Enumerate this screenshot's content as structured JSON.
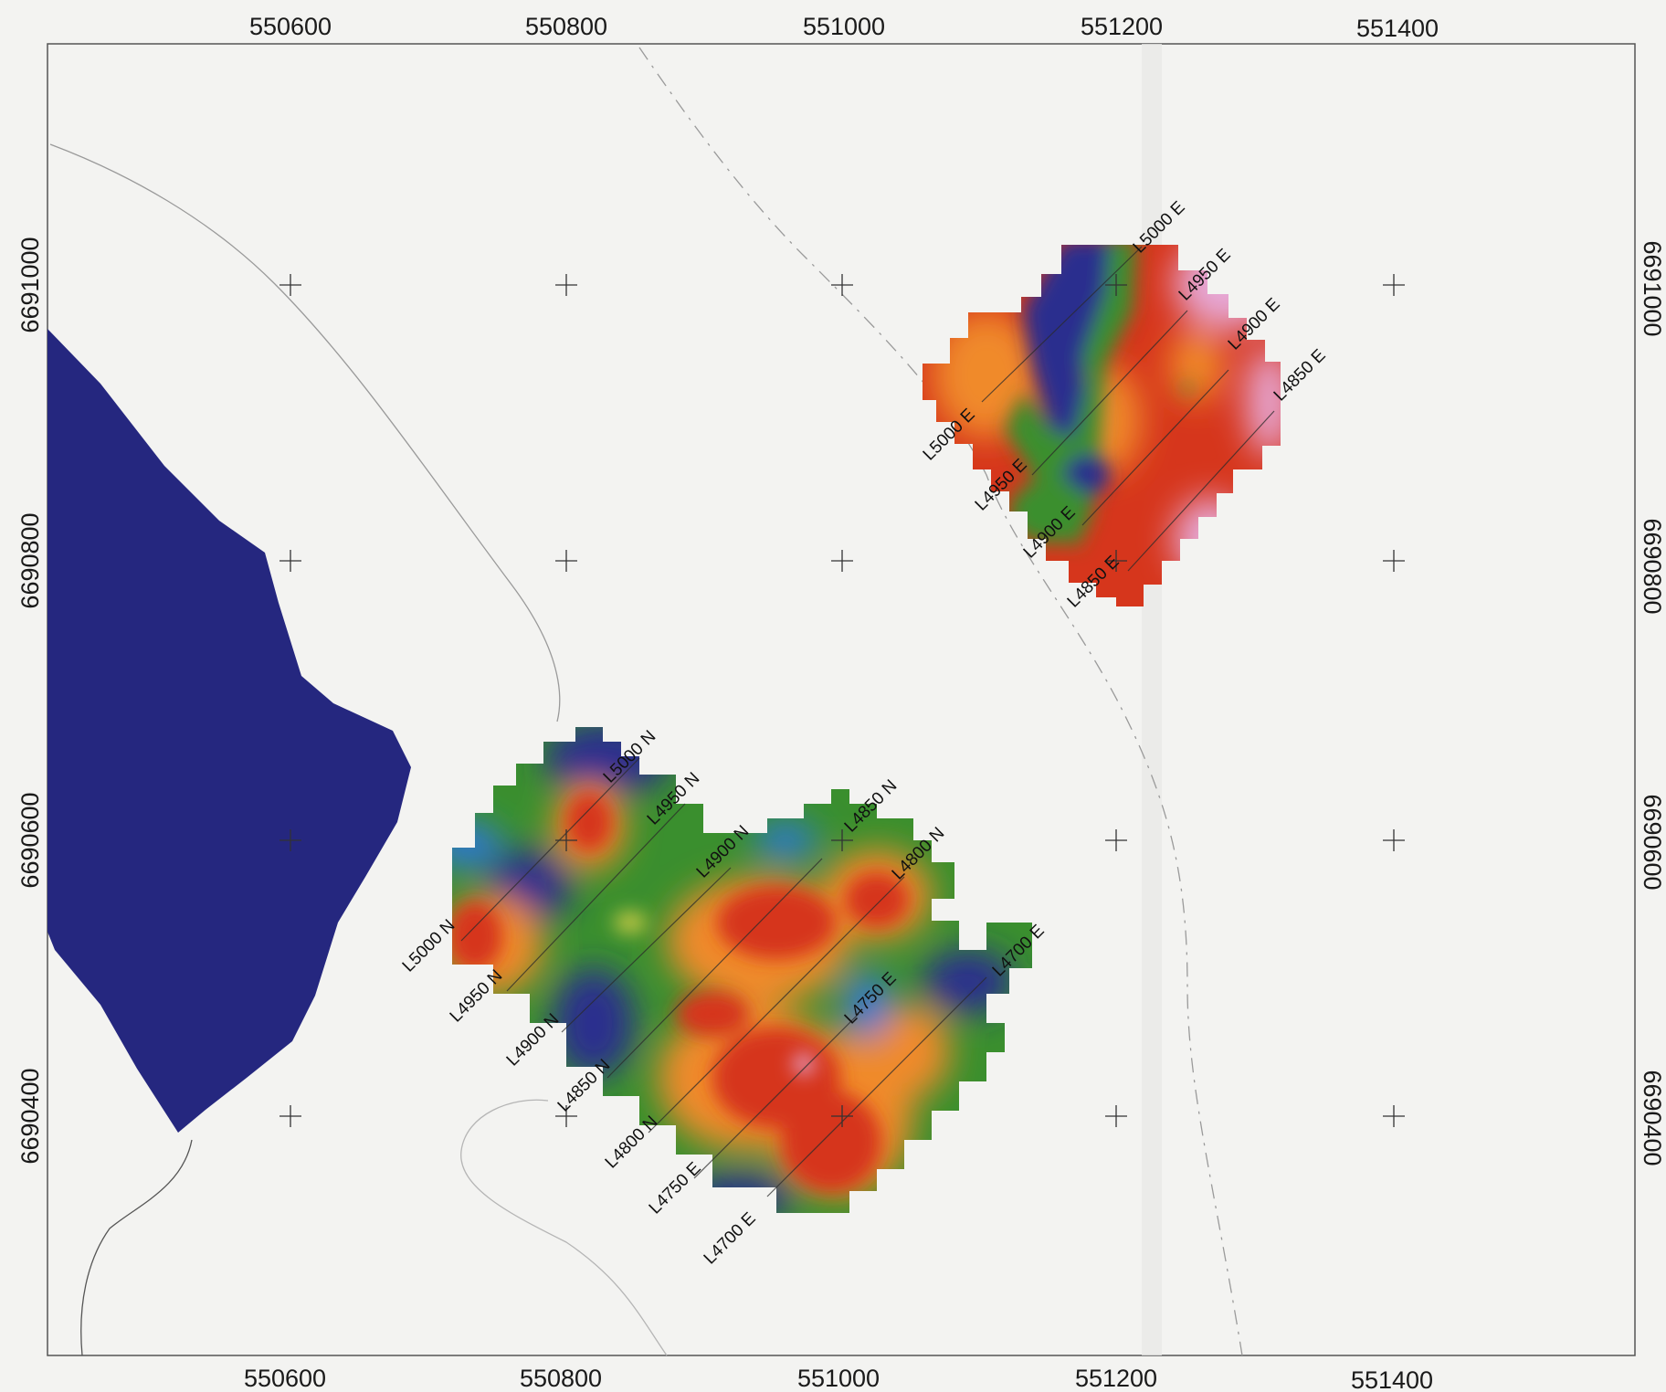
{
  "map": {
    "x_ticks": [
      "550600",
      "550800",
      "551000",
      "551200",
      "551400"
    ],
    "y_ticks": [
      "6691000",
      "6690800",
      "6690600",
      "6690400"
    ],
    "colors": {
      "background": "#f3f3f1",
      "lake": "#25277f",
      "deep_blue": "#2b2d8e",
      "blue": "#2f76d6",
      "green": "#3a8f2e",
      "yellow": "#e8d84a",
      "orange": "#f08a2a",
      "red": "#d6361c",
      "pink": "#e6a8d6"
    },
    "line_labels": {
      "north_grid": {
        "n_lines": [
          "L5000 N",
          "L4950 N",
          "L4900 N",
          "L4850 N",
          "L4800 N"
        ],
        "n_lines_top": [
          "L5000 N",
          "L4950 N",
          "L4900 N",
          "L4850 N",
          "L4800 N"
        ],
        "e_lines": [
          "L4750 E",
          "L4700 E"
        ],
        "e_lines_top": [
          "L4750 E",
          "L4700 E"
        ]
      },
      "east_grid": {
        "bottom": [
          "L5000 E",
          "L4950 E",
          "L4900 E",
          "L4850 E"
        ],
        "top": [
          "L5000 E",
          "L4950 E",
          "L4900 E",
          "L4850 E"
        ]
      }
    }
  }
}
